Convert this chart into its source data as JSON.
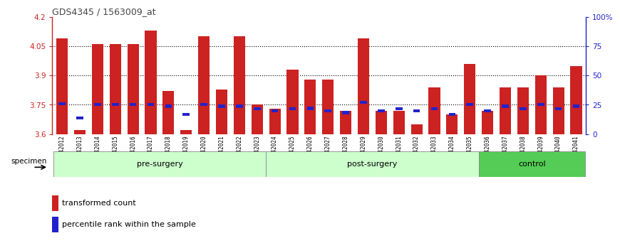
{
  "title": "GDS4345 / 1563009_at",
  "samples": [
    "GSM842012",
    "GSM842013",
    "GSM842014",
    "GSM842015",
    "GSM842016",
    "GSM842017",
    "GSM842018",
    "GSM842019",
    "GSM842020",
    "GSM842021",
    "GSM842022",
    "GSM842023",
    "GSM842024",
    "GSM842025",
    "GSM842026",
    "GSM842027",
    "GSM842028",
    "GSM842029",
    "GSM842030",
    "GSM842031",
    "GSM842032",
    "GSM842033",
    "GSM842034",
    "GSM842035",
    "GSM842036",
    "GSM842037",
    "GSM842038",
    "GSM842039",
    "GSM842040",
    "GSM842041"
  ],
  "red_values": [
    4.09,
    3.62,
    4.06,
    4.06,
    4.06,
    4.13,
    3.82,
    3.62,
    4.1,
    3.83,
    4.1,
    3.75,
    3.73,
    3.93,
    3.88,
    3.88,
    3.72,
    4.09,
    3.72,
    3.72,
    3.65,
    3.84,
    3.7,
    3.96,
    3.72,
    3.84,
    3.84,
    3.9,
    3.84,
    3.95
  ],
  "blue_values": [
    3.755,
    3.683,
    3.752,
    3.752,
    3.752,
    3.751,
    3.742,
    3.7,
    3.752,
    3.742,
    3.742,
    3.73,
    3.72,
    3.73,
    3.732,
    3.72,
    3.71,
    3.762,
    3.72,
    3.73,
    3.72,
    3.73,
    3.7,
    3.752,
    3.72,
    3.742,
    3.73,
    3.752,
    3.73,
    3.742
  ],
  "ylim": [
    3.6,
    4.2
  ],
  "yticks_left": [
    3.6,
    3.75,
    3.9,
    4.05,
    4.2
  ],
  "yticks_right": [
    0,
    25,
    50,
    75,
    100
  ],
  "ytick_labels_right": [
    "0",
    "25",
    "50",
    "75",
    "100%"
  ],
  "dotted_lines": [
    4.05,
    3.9,
    3.75
  ],
  "bar_color": "#cc2222",
  "blue_color": "#2222cc",
  "bar_bottom": 3.6,
  "specimen_label": "specimen",
  "legend_red": "transformed count",
  "legend_blue": "percentile rank within the sample",
  "title_color": "#444444",
  "axis_label_color_left": "#cc2222",
  "axis_label_color_right": "#2222cc",
  "group_ranges": [
    [
      0,
      11,
      "pre-surgery",
      "#ccffcc"
    ],
    [
      12,
      23,
      "post-surgery",
      "#ccffcc"
    ],
    [
      24,
      29,
      "control",
      "#55cc55"
    ]
  ]
}
